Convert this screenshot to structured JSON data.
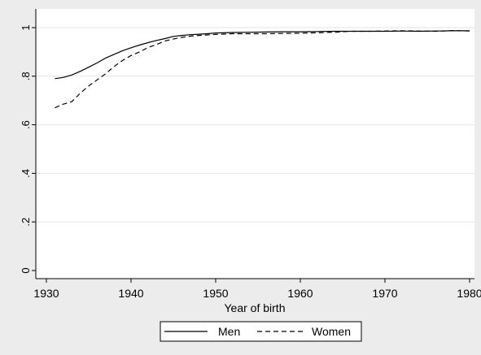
{
  "chart_data": {
    "type": "line",
    "xlabel": "Year of birth",
    "ylabel": "",
    "xlim": [
      1930,
      1980
    ],
    "ylim": [
      0,
      1
    ],
    "xticks": [
      1930,
      1940,
      1950,
      1960,
      1970,
      1980
    ],
    "yticks": [
      0,
      0.2,
      0.4,
      0.6,
      0.8,
      1
    ],
    "xtick_labels": [
      "1930",
      "1940",
      "1950",
      "1960",
      "1970",
      "1980"
    ],
    "ytick_labels": [
      "0",
      ".2",
      ".4",
      ".6",
      ".8",
      "1"
    ],
    "grid": "horizontal",
    "legend_position": "bottom",
    "series": [
      {
        "name": "Men",
        "style": "solid",
        "color": "#000000",
        "x": [
          1931,
          1932,
          1933,
          1934,
          1935,
          1936,
          1937,
          1938,
          1939,
          1940,
          1941,
          1942,
          1943,
          1944,
          1945,
          1946,
          1947,
          1948,
          1949,
          1950,
          1952,
          1954,
          1956,
          1958,
          1960,
          1962,
          1964,
          1966,
          1968,
          1970,
          1972,
          1974,
          1976,
          1978,
          1980
        ],
        "y": [
          0.79,
          0.795,
          0.805,
          0.82,
          0.837,
          0.855,
          0.875,
          0.89,
          0.905,
          0.917,
          0.928,
          0.938,
          0.947,
          0.955,
          0.964,
          0.968,
          0.971,
          0.973,
          0.975,
          0.978,
          0.98,
          0.981,
          0.982,
          0.983,
          0.983,
          0.984,
          0.985,
          0.985,
          0.985,
          0.985,
          0.986,
          0.985,
          0.986,
          0.987,
          0.987
        ]
      },
      {
        "name": "Women",
        "style": "dashed",
        "color": "#000000",
        "x": [
          1931,
          1932,
          1933,
          1934,
          1935,
          1936,
          1937,
          1938,
          1939,
          1940,
          1941,
          1942,
          1943,
          1944,
          1945,
          1946,
          1947,
          1948,
          1950,
          1952,
          1954,
          1956,
          1958,
          1960,
          1962,
          1964,
          1966,
          1968,
          1970,
          1972,
          1974,
          1976,
          1978,
          1980
        ],
        "y": [
          0.67,
          0.685,
          0.695,
          0.73,
          0.76,
          0.785,
          0.81,
          0.84,
          0.865,
          0.885,
          0.9,
          0.918,
          0.93,
          0.945,
          0.953,
          0.96,
          0.965,
          0.968,
          0.972,
          0.975,
          0.975,
          0.975,
          0.976,
          0.977,
          0.979,
          0.981,
          0.985,
          0.985,
          0.986,
          0.987,
          0.986,
          0.985,
          0.988,
          0.986
        ]
      }
    ]
  }
}
